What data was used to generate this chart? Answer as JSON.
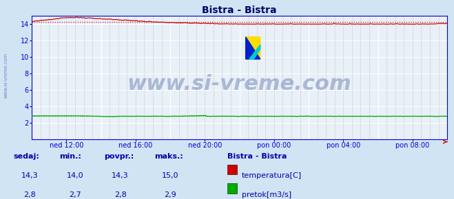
{
  "title": "Bistra - Bistra",
  "bg_color": "#d0e4f4",
  "plot_bg_color": "#e8f0f8",
  "grid_h_color": "#ffffff",
  "grid_v_color": "#e0c8c8",
  "grid_v_major_color": "#ffffff",
  "text_color": "#0000aa",
  "title_color": "#000066",
  "axis_color": "#0000cc",
  "temp_color": "#cc0000",
  "flow_color": "#00aa00",
  "avg_temp_color": "#cc0000",
  "avg_flow_color": "#00aa00",
  "ylim": [
    0,
    15
  ],
  "yticks": [
    2,
    4,
    6,
    8,
    10,
    12,
    14
  ],
  "xtick_labels": [
    "ned 12:00",
    "ned 16:00",
    "ned 20:00",
    "pon 00:00",
    "pon 04:00",
    "pon 08:00"
  ],
  "num_points": 288,
  "temp_avg": 14.3,
  "flow_avg": 2.8,
  "watermark": "www.si-vreme.com",
  "watermark_color": "#1a3a8a",
  "watermark_alpha": 0.3,
  "watermark_fontsize": 22,
  "legend_title": "Bistra - Bistra",
  "legend_temp_label": "temperatura[C]",
  "legend_flow_label": "pretok[m3/s]",
  "stats_headers": [
    "sedaj:",
    "min.:",
    "povpr.:",
    "maks.:"
  ],
  "stats_temp": [
    "14,3",
    "14,0",
    "14,3",
    "15,0"
  ],
  "stats_flow": [
    "2,8",
    "2,7",
    "2,8",
    "2,9"
  ],
  "footer_bg": "#c0d8ee",
  "left_label": "www.si-vreme.com"
}
